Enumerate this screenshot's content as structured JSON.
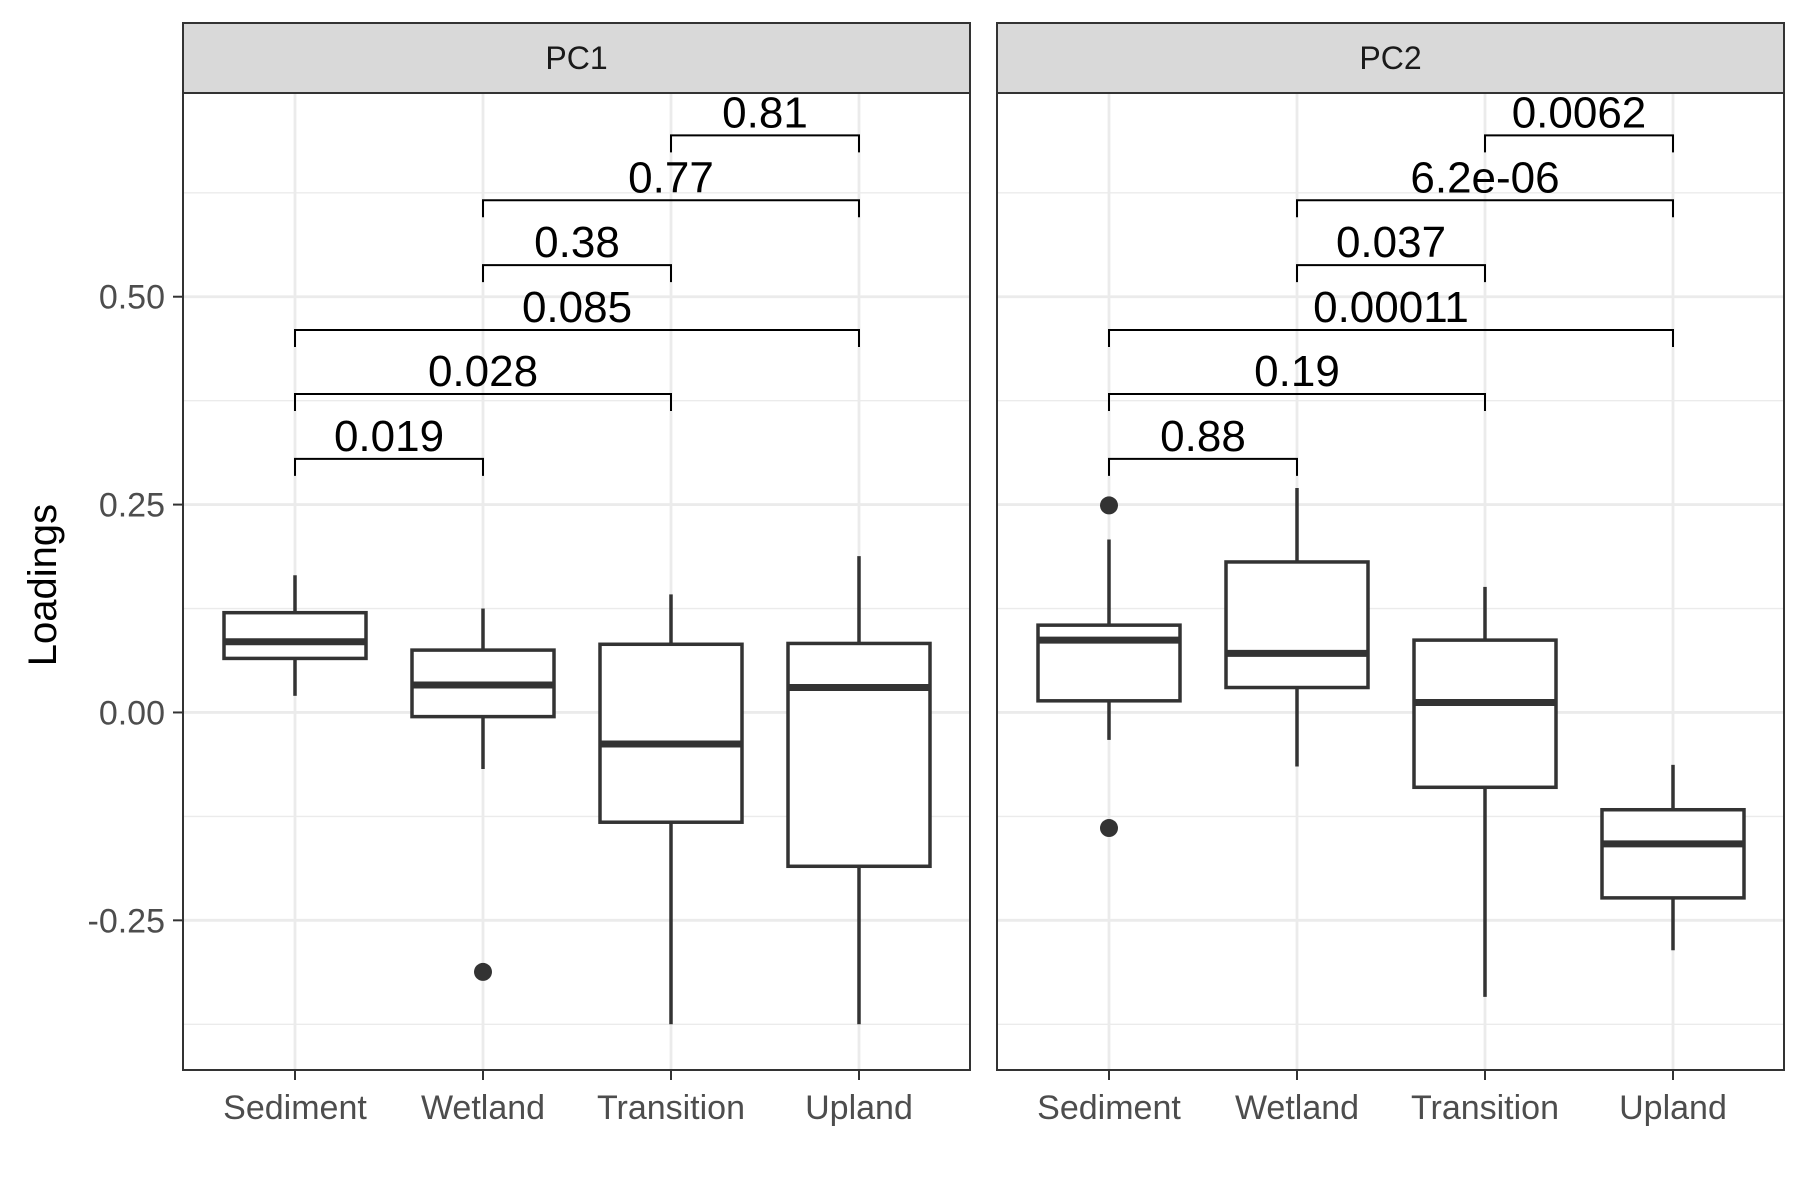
{
  "chart_data": {
    "type": "boxplot",
    "ylabel": "Loadings",
    "xlabel": "",
    "ylim": [
      -0.43,
      0.745
    ],
    "yticks": [
      -0.25,
      0,
      0.25,
      0.5
    ],
    "ytick_labels": [
      "-0.25",
      "0.00",
      "0.25",
      "0.50"
    ],
    "categories": [
      "Sediment",
      "Wetland",
      "Transition",
      "Upland"
    ],
    "grid": true,
    "legend": "none",
    "colors": {
      "box_line": "#333333",
      "strip_fill": "#d9d9d9",
      "grid": "#ebebeb",
      "panel_border": "#333333"
    },
    "panels": [
      {
        "strip": "PC1",
        "boxes": [
          {
            "category": "Sediment",
            "lower_whisker": 0.02,
            "q1": 0.065,
            "median": 0.085,
            "q3": 0.12,
            "upper_whisker": 0.165,
            "outliers": []
          },
          {
            "category": "Wetland",
            "lower_whisker": -0.068,
            "q1": -0.005,
            "median": 0.033,
            "q3": 0.075,
            "upper_whisker": 0.125,
            "outliers": [
              -0.312
            ]
          },
          {
            "category": "Transition",
            "lower_whisker": -0.375,
            "q1": -0.132,
            "median": -0.038,
            "q3": 0.082,
            "upper_whisker": 0.142,
            "outliers": []
          },
          {
            "category": "Upland",
            "lower_whisker": -0.375,
            "q1": -0.185,
            "median": 0.03,
            "q3": 0.083,
            "upper_whisker": 0.188,
            "outliers": []
          }
        ],
        "comparisons": [
          {
            "from": "Sediment",
            "to": "Wetland",
            "label": "0.019",
            "y": 0.305
          },
          {
            "from": "Sediment",
            "to": "Transition",
            "label": "0.028",
            "y": 0.383
          },
          {
            "from": "Sediment",
            "to": "Upland",
            "label": "0.085",
            "y": 0.46
          },
          {
            "from": "Wetland",
            "to": "Transition",
            "label": "0.38",
            "y": 0.538
          },
          {
            "from": "Wetland",
            "to": "Upland",
            "label": "0.77",
            "y": 0.616
          },
          {
            "from": "Transition",
            "to": "Upland",
            "label": "0.81",
            "y": 0.694
          }
        ]
      },
      {
        "strip": "PC2",
        "boxes": [
          {
            "category": "Sediment",
            "lower_whisker": -0.033,
            "q1": 0.014,
            "median": 0.087,
            "q3": 0.105,
            "upper_whisker": 0.208,
            "outliers": [
              0.249,
              -0.139
            ]
          },
          {
            "category": "Wetland",
            "lower_whisker": -0.065,
            "q1": 0.03,
            "median": 0.071,
            "q3": 0.181,
            "upper_whisker": 0.27,
            "outliers": []
          },
          {
            "category": "Transition",
            "lower_whisker": -0.342,
            "q1": -0.09,
            "median": 0.012,
            "q3": 0.087,
            "upper_whisker": 0.151,
            "outliers": []
          },
          {
            "category": "Upland",
            "lower_whisker": -0.286,
            "q1": -0.223,
            "median": -0.158,
            "q3": -0.117,
            "upper_whisker": -0.063,
            "outliers": []
          }
        ],
        "comparisons": [
          {
            "from": "Sediment",
            "to": "Wetland",
            "label": "0.88",
            "y": 0.305
          },
          {
            "from": "Sediment",
            "to": "Transition",
            "label": "0.19",
            "y": 0.383
          },
          {
            "from": "Sediment",
            "to": "Upland",
            "label": "0.00011",
            "y": 0.46
          },
          {
            "from": "Wetland",
            "to": "Transition",
            "label": "0.037",
            "y": 0.538
          },
          {
            "from": "Wetland",
            "to": "Upland",
            "label": "6.2e-06",
            "y": 0.616
          },
          {
            "from": "Transition",
            "to": "Upland",
            "label": "0.0062",
            "y": 0.694
          }
        ]
      }
    ]
  }
}
